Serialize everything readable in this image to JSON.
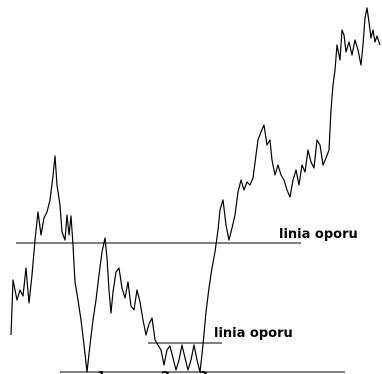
{
  "chart_data": {
    "type": "line",
    "title": "",
    "xlabel": "",
    "ylabel": "",
    "grid": false,
    "legend": "none",
    "line_color": "#000000",
    "series": [
      {
        "points": [
          [
            11,
            335
          ],
          [
            13,
            280
          ],
          [
            17,
            300
          ],
          [
            20,
            290
          ],
          [
            23,
            296
          ],
          [
            26,
            268
          ],
          [
            29,
            303
          ],
          [
            32,
            275
          ],
          [
            35,
            240
          ],
          [
            38,
            212
          ],
          [
            41,
            235
          ],
          [
            44,
            218
          ],
          [
            47,
            212
          ],
          [
            50,
            200
          ],
          [
            53,
            176
          ],
          [
            55,
            156
          ],
          [
            57,
            185
          ],
          [
            60,
            205
          ],
          [
            62,
            232
          ],
          [
            65,
            240
          ],
          [
            67,
            215
          ],
          [
            69,
            235
          ],
          [
            71,
            216
          ],
          [
            73,
            245
          ],
          [
            75,
            282
          ],
          [
            78,
            300
          ],
          [
            81,
            320
          ],
          [
            84,
            345
          ],
          [
            87,
            372
          ],
          [
            90,
            345
          ],
          [
            93,
            320
          ],
          [
            96,
            300
          ],
          [
            99,
            275
          ],
          [
            102,
            252
          ],
          [
            105,
            238
          ],
          [
            107,
            258
          ],
          [
            109,
            290
          ],
          [
            111,
            313
          ],
          [
            113,
            292
          ],
          [
            116,
            272
          ],
          [
            119,
            268
          ],
          [
            122,
            288
          ],
          [
            125,
            298
          ],
          [
            128,
            282
          ],
          [
            131,
            306
          ],
          [
            134,
            310
          ],
          [
            137,
            290
          ],
          [
            140,
            302
          ],
          [
            143,
            320
          ],
          [
            146,
            335
          ],
          [
            149,
            324
          ],
          [
            152,
            318
          ],
          [
            155,
            340
          ],
          [
            158,
            345
          ],
          [
            161,
            350
          ],
          [
            164,
            365
          ],
          [
            167,
            350
          ],
          [
            170,
            346
          ],
          [
            173,
            358
          ],
          [
            176,
            370
          ],
          [
            179,
            360
          ],
          [
            182,
            345
          ],
          [
            185,
            358
          ],
          [
            188,
            370
          ],
          [
            191,
            360
          ],
          [
            194,
            345
          ],
          [
            197,
            360
          ],
          [
            200,
            372
          ],
          [
            203,
            345
          ],
          [
            206,
            312
          ],
          [
            209,
            288
          ],
          [
            212,
            268
          ],
          [
            215,
            252
          ],
          [
            218,
            230
          ],
          [
            220,
            210
          ],
          [
            223,
            200
          ],
          [
            226,
            225
          ],
          [
            229,
            240
          ],
          [
            232,
            228
          ],
          [
            235,
            215
          ],
          [
            238,
            192
          ],
          [
            241,
            180
          ],
          [
            244,
            190
          ],
          [
            247,
            182
          ],
          [
            250,
            185
          ],
          [
            253,
            178
          ],
          [
            256,
            155
          ],
          [
            258,
            140
          ],
          [
            261,
            132
          ],
          [
            264,
            125
          ],
          [
            267,
            145
          ],
          [
            270,
            140
          ],
          [
            272,
            160
          ],
          [
            275,
            175
          ],
          [
            278,
            165
          ],
          [
            281,
            175
          ],
          [
            284,
            180
          ],
          [
            287,
            190
          ],
          [
            290,
            197
          ],
          [
            293,
            180
          ],
          [
            296,
            170
          ],
          [
            299,
            185
          ],
          [
            302,
            165
          ],
          [
            305,
            172
          ],
          [
            308,
            150
          ],
          [
            311,
            162
          ],
          [
            314,
            168
          ],
          [
            317,
            140
          ],
          [
            320,
            145
          ],
          [
            323,
            165
          ],
          [
            326,
            158
          ],
          [
            329,
            150
          ],
          [
            331,
            110
          ],
          [
            333,
            85
          ],
          [
            335,
            70
          ],
          [
            337,
            45
          ],
          [
            340,
            60
          ],
          [
            342,
            30
          ],
          [
            344,
            35
          ],
          [
            346,
            52
          ],
          [
            349,
            42
          ],
          [
            352,
            55
          ],
          [
            355,
            40
          ],
          [
            358,
            50
          ],
          [
            361,
            65
          ],
          [
            363,
            45
          ],
          [
            365,
            18
          ],
          [
            367,
            8
          ],
          [
            369,
            22
          ],
          [
            371,
            38
          ],
          [
            373,
            30
          ],
          [
            375,
            42
          ],
          [
            377,
            36
          ],
          [
            380,
            45
          ]
        ]
      }
    ],
    "annotations": [
      {
        "label": "linia oporu",
        "line_y": 243
      },
      {
        "label": "linia oporu",
        "line_y": 343
      }
    ],
    "tick_marks": [
      "1",
      "2",
      "3"
    ]
  }
}
